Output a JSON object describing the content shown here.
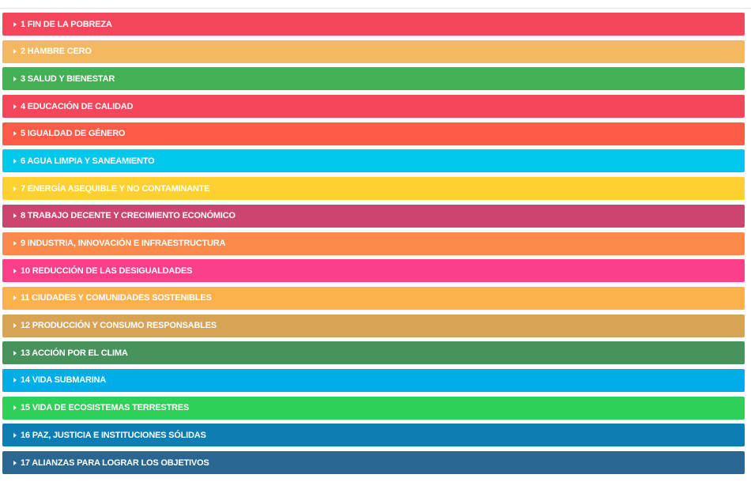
{
  "goals": [
    {
      "label": "1 FIN DE LA POBREZA",
      "color": "#f4475b"
    },
    {
      "label": "2 HAMBRE CERO",
      "color": "#f4b860"
    },
    {
      "label": "3 SALUD Y BIENESTAR",
      "color": "#43b053"
    },
    {
      "label": "4 EDUCACIÓN DE CALIDAD",
      "color": "#f4475b"
    },
    {
      "label": "5 IGUALDAD DE GÉNERO",
      "color": "#fb5b47"
    },
    {
      "label": "6 AGUA LIMPIA Y SANEAMIENTO",
      "color": "#00c8ec"
    },
    {
      "label": "7 ENERGÍA ASEQUIBLE Y NO CONTAMINANTE",
      "color": "#fed130"
    },
    {
      "label": "8 TRABAJO DECENTE Y CRECIMIENTO ECONÓMICO",
      "color": "#cb4570"
    },
    {
      "label": "9 INDUSTRIA, INNOVACIÓN E INFRAESTRUCTURA",
      "color": "#fb8a4b"
    },
    {
      "label": "10 REDUCCIÓN DE LAS DESIGUALDADES",
      "color": "#fb3f88"
    },
    {
      "label": "11 CIUDADES Y COMUNIDADES SOSTENIBLES",
      "color": "#fdb14c"
    },
    {
      "label": "12 PRODUCCIÓN Y CONSUMO RESPONSABLES",
      "color": "#d9a356"
    },
    {
      "label": "13 ACCIÓN POR EL CLIMA",
      "color": "#48925c"
    },
    {
      "label": "14 VIDA SUBMARINA",
      "color": "#00ade8"
    },
    {
      "label": "15 VIDA DE ECOSISTEMAS TERRESTRES",
      "color": "#2fd058"
    },
    {
      "label": "16 PAZ, JUSTICIA E INSTITUCIONES SÓLIDAS",
      "color": "#0d7eb4"
    },
    {
      "label": "17 ALIANZAS PARA LOGRAR LOS OBJETIVOS",
      "color": "#2a6790"
    }
  ]
}
